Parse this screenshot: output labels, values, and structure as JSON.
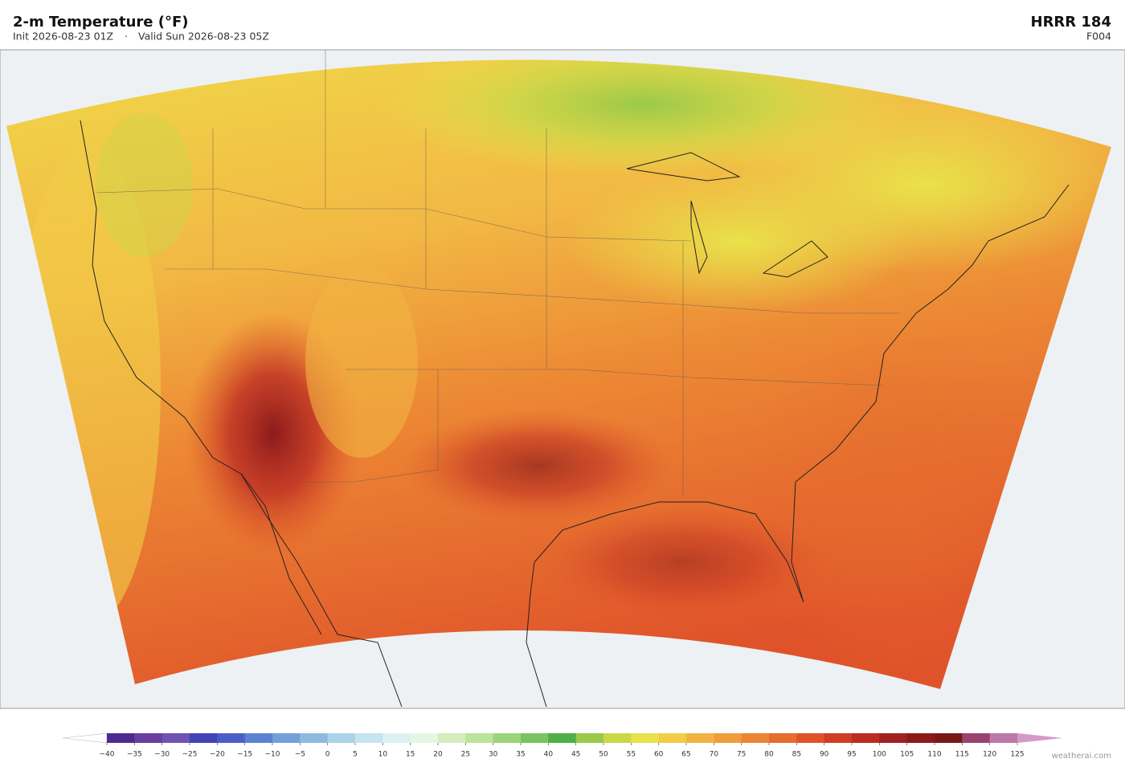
{
  "header": {
    "title": "2-m Temperature  (°F)",
    "init": "Init 2026-08-23 01Z",
    "separator": "·",
    "valid": "Valid Sun 2026-08-23 05Z",
    "model": "HRRR  184",
    "forecast_hour": "F004"
  },
  "colorbar": {
    "ticks": [
      {
        "value": -40,
        "label": "−40"
      },
      {
        "value": -35,
        "label": "−35"
      },
      {
        "value": -30,
        "label": "−30"
      },
      {
        "value": -25,
        "label": "−25"
      },
      {
        "value": -20,
        "label": "−20"
      },
      {
        "value": -15,
        "label": "−15"
      },
      {
        "value": -10,
        "label": "−10"
      },
      {
        "value": -5,
        "label": "−5"
      },
      0,
      5,
      10,
      15,
      20,
      25,
      30,
      35,
      40,
      45,
      50,
      55,
      60,
      65,
      70,
      75,
      80,
      85,
      90,
      95,
      100,
      105,
      110,
      115,
      120,
      125
    ],
    "colors": [
      "#4e2a8e",
      "#6a3da0",
      "#6f52b2",
      "#4343b8",
      "#4b5ec6",
      "#5b82d2",
      "#73a0d8",
      "#8fbadf",
      "#aad3e8",
      "#c4e5ef",
      "#dcf1f2",
      "#e6f6e4",
      "#d3edbf",
      "#bce39a",
      "#9bd47a",
      "#78c45e",
      "#4faf48",
      "#9bc94a",
      "#cad848",
      "#e9e24a",
      "#f2cd48",
      "#f1b443",
      "#ef9c3b",
      "#eb8534",
      "#e66d2e",
      "#e0532a",
      "#cf3d26",
      "#bb2c23",
      "#9f2121",
      "#8b1b1b",
      "#7a1818",
      "#9b4272",
      "#bd78aa",
      "#d8a6cc"
    ],
    "under_color": "#ffffff",
    "over_color": "#d49ac8"
  },
  "credit": "weatherai.com"
}
